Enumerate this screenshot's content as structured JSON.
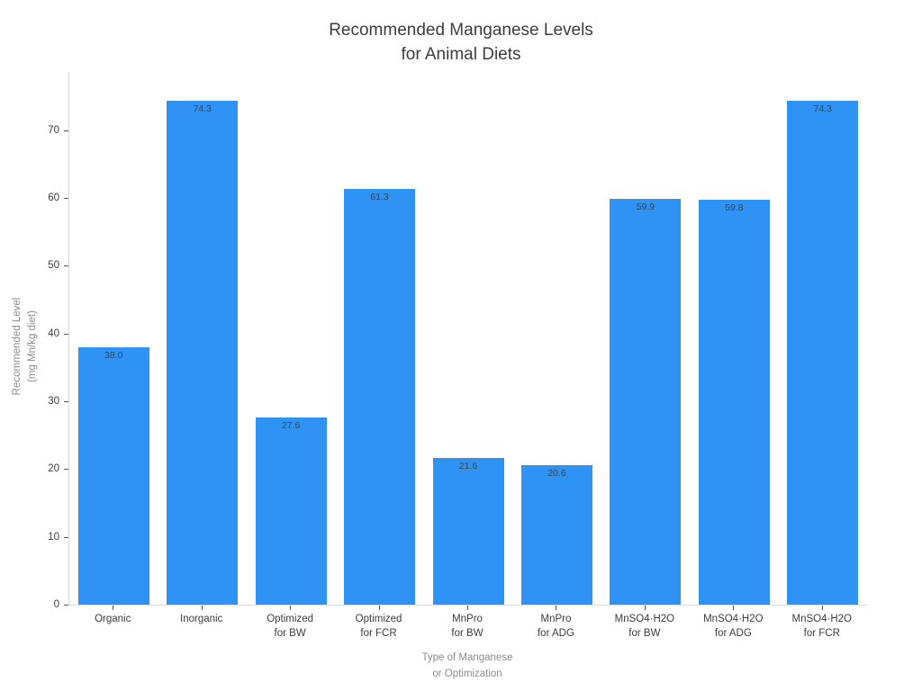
{
  "colors": {
    "bar_fill": "#2E93F5",
    "title_text": "#3d3d3d",
    "tick_label_text": "#3d3d3d",
    "axis_title_text": "#8c8c8c",
    "axis_line": "#d9d9d9",
    "tick_mark": "#555555",
    "bar_value_text": "#3a4450",
    "background": "#ffffff"
  },
  "chart_data": {
    "type": "bar",
    "title": "Recommended Manganese Levels\nfor Animal Diets",
    "xlabel": "Type of Manganese\nor Optimization",
    "ylabel": "Recommended Level\n(mg Mn/kg diet)",
    "categories": [
      "Organic",
      "Inorganic",
      "Optimized\nfor BW",
      "Optimized\nfor FCR",
      "MnPro\nfor BW",
      "MnPro\nfor ADG",
      "MnSO4·H2O\nfor BW",
      "MnSO4·H2O\nfor ADG",
      "MnSO4·H2O\nfor FCR"
    ],
    "values": [
      38.0,
      74.3,
      27.6,
      61.3,
      21.6,
      20.6,
      59.9,
      59.8,
      74.3
    ],
    "value_labels": [
      "38.0",
      "74.3",
      "27.6",
      "61.3",
      "21.6",
      "20.6",
      "59.9",
      "59.8",
      "74.3"
    ],
    "yticks": [
      0,
      10,
      20,
      30,
      40,
      50,
      60,
      70
    ],
    "ylim": [
      0,
      78.6
    ],
    "grid": false,
    "legend": null
  }
}
